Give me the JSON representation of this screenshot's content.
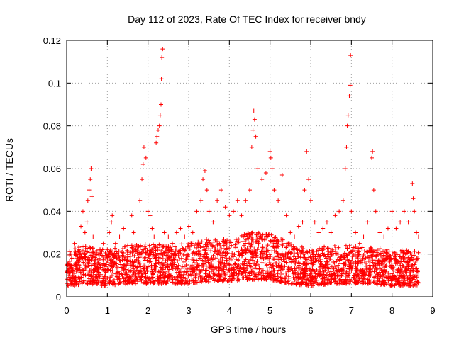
{
  "chart_data": {
    "type": "scatter",
    "title": "Day 112 of 2023, Rate Of TEC Index for receiver bndy",
    "xlabel": "GPS time / hours",
    "ylabel": "ROTI / TECUs",
    "xlim": [
      0,
      9
    ],
    "ylim": [
      0,
      0.12
    ],
    "x_ticks": [
      0,
      1,
      2,
      3,
      4,
      5,
      6,
      7,
      8,
      9
    ],
    "y_ticks": [
      0,
      0.02,
      0.04,
      0.06,
      0.08,
      0.1,
      0.12
    ],
    "x_tick_labels": [
      "0",
      "1",
      "2",
      "3",
      "4",
      "5",
      "6",
      "7",
      "8",
      "9"
    ],
    "y_tick_labels": [
      "0",
      "0.02",
      "0.04",
      "0.06",
      "0.08",
      "0.1",
      "0.12"
    ],
    "grid": true,
    "marker": "+",
    "color": "#ff0000",
    "series": [
      {
        "name": "ROTI",
        "points": [
          [
            0.05,
            0.015
          ],
          [
            0.1,
            0.02
          ],
          [
            0.12,
            0.012
          ],
          [
            0.2,
            0.025
          ],
          [
            0.25,
            0.018
          ],
          [
            0.3,
            0.022
          ],
          [
            0.35,
            0.033
          ],
          [
            0.4,
            0.04
          ],
          [
            0.45,
            0.03
          ],
          [
            0.5,
            0.035
          ],
          [
            0.52,
            0.045
          ],
          [
            0.55,
            0.05
          ],
          [
            0.58,
            0.055
          ],
          [
            0.6,
            0.06
          ],
          [
            0.62,
            0.047
          ],
          [
            0.65,
            0.028
          ],
          [
            0.7,
            0.02
          ],
          [
            0.8,
            0.018
          ],
          [
            0.9,
            0.025
          ],
          [
            1.0,
            0.022
          ],
          [
            1.05,
            0.03
          ],
          [
            1.1,
            0.035
          ],
          [
            1.12,
            0.038
          ],
          [
            1.2,
            0.025
          ],
          [
            1.3,
            0.028
          ],
          [
            1.4,
            0.032
          ],
          [
            1.5,
            0.024
          ],
          [
            1.6,
            0.038
          ],
          [
            1.65,
            0.03
          ],
          [
            1.7,
            0.022
          ],
          [
            1.8,
            0.045
          ],
          [
            1.85,
            0.055
          ],
          [
            1.88,
            0.062
          ],
          [
            1.9,
            0.07
          ],
          [
            1.95,
            0.065
          ],
          [
            2.0,
            0.04
          ],
          [
            2.05,
            0.038
          ],
          [
            2.1,
            0.032
          ],
          [
            2.15,
            0.028
          ],
          [
            2.2,
            0.072
          ],
          [
            2.22,
            0.075
          ],
          [
            2.25,
            0.078
          ],
          [
            2.28,
            0.08
          ],
          [
            2.3,
            0.085
          ],
          [
            2.32,
            0.09
          ],
          [
            2.33,
            0.102
          ],
          [
            2.34,
            0.112
          ],
          [
            2.36,
            0.116
          ],
          [
            2.4,
            0.03
          ],
          [
            2.5,
            0.028
          ],
          [
            2.6,
            0.025
          ],
          [
            2.7,
            0.03
          ],
          [
            2.8,
            0.032
          ],
          [
            2.9,
            0.028
          ],
          [
            3.0,
            0.033
          ],
          [
            3.1,
            0.03
          ],
          [
            3.2,
            0.04
          ],
          [
            3.3,
            0.045
          ],
          [
            3.35,
            0.055
          ],
          [
            3.4,
            0.059
          ],
          [
            3.45,
            0.05
          ],
          [
            3.5,
            0.04
          ],
          [
            3.6,
            0.035
          ],
          [
            3.7,
            0.045
          ],
          [
            3.8,
            0.05
          ],
          [
            3.9,
            0.042
          ],
          [
            4.0,
            0.038
          ],
          [
            4.1,
            0.04
          ],
          [
            4.2,
            0.045
          ],
          [
            4.3,
            0.038
          ],
          [
            4.4,
            0.045
          ],
          [
            4.5,
            0.05
          ],
          [
            4.55,
            0.07
          ],
          [
            4.58,
            0.078
          ],
          [
            4.6,
            0.087
          ],
          [
            4.62,
            0.083
          ],
          [
            4.65,
            0.075
          ],
          [
            4.7,
            0.06
          ],
          [
            4.8,
            0.055
          ],
          [
            4.9,
            0.058
          ],
          [
            5.0,
            0.068
          ],
          [
            5.02,
            0.065
          ],
          [
            5.05,
            0.06
          ],
          [
            5.1,
            0.05
          ],
          [
            5.2,
            0.045
          ],
          [
            5.3,
            0.057
          ],
          [
            5.4,
            0.038
          ],
          [
            5.5,
            0.03
          ],
          [
            5.6,
            0.028
          ],
          [
            5.7,
            0.033
          ],
          [
            5.8,
            0.035
          ],
          [
            5.85,
            0.05
          ],
          [
            5.9,
            0.068
          ],
          [
            5.95,
            0.055
          ],
          [
            6.0,
            0.045
          ],
          [
            6.1,
            0.035
          ],
          [
            6.2,
            0.03
          ],
          [
            6.3,
            0.032
          ],
          [
            6.4,
            0.035
          ],
          [
            6.5,
            0.03
          ],
          [
            6.6,
            0.038
          ],
          [
            6.7,
            0.04
          ],
          [
            6.8,
            0.045
          ],
          [
            6.85,
            0.06
          ],
          [
            6.88,
            0.07
          ],
          [
            6.9,
            0.08
          ],
          [
            6.92,
            0.085
          ],
          [
            6.95,
            0.094
          ],
          [
            6.97,
            0.099
          ],
          [
            6.98,
            0.113
          ],
          [
            7.0,
            0.04
          ],
          [
            7.1,
            0.03
          ],
          [
            7.2,
            0.025
          ],
          [
            7.3,
            0.028
          ],
          [
            7.4,
            0.035
          ],
          [
            7.5,
            0.065
          ],
          [
            7.52,
            0.068
          ],
          [
            7.55,
            0.05
          ],
          [
            7.6,
            0.04
          ],
          [
            7.7,
            0.03
          ],
          [
            7.8,
            0.028
          ],
          [
            7.9,
            0.032
          ],
          [
            8.0,
            0.04
          ],
          [
            8.1,
            0.032
          ],
          [
            8.2,
            0.035
          ],
          [
            8.3,
            0.04
          ],
          [
            8.4,
            0.035
          ],
          [
            8.5,
            0.053
          ],
          [
            8.52,
            0.046
          ],
          [
            8.55,
            0.04
          ],
          [
            8.6,
            0.03
          ],
          [
            8.65,
            0.028
          ]
        ],
        "background_band": [
          [
            0.0,
            0.005,
            0.022
          ],
          [
            0.5,
            0.006,
            0.024
          ],
          [
            1.0,
            0.005,
            0.022
          ],
          [
            1.5,
            0.006,
            0.024
          ],
          [
            2.0,
            0.006,
            0.025
          ],
          [
            2.5,
            0.006,
            0.024
          ],
          [
            3.0,
            0.006,
            0.026
          ],
          [
            3.5,
            0.007,
            0.027
          ],
          [
            4.0,
            0.007,
            0.027
          ],
          [
            4.5,
            0.008,
            0.03
          ],
          [
            5.0,
            0.008,
            0.03
          ],
          [
            5.5,
            0.006,
            0.025
          ],
          [
            6.0,
            0.005,
            0.022
          ],
          [
            6.5,
            0.006,
            0.024
          ],
          [
            7.0,
            0.006,
            0.024
          ],
          [
            7.5,
            0.006,
            0.023
          ],
          [
            8.0,
            0.005,
            0.022
          ],
          [
            8.65,
            0.005,
            0.022
          ]
        ]
      }
    ]
  }
}
